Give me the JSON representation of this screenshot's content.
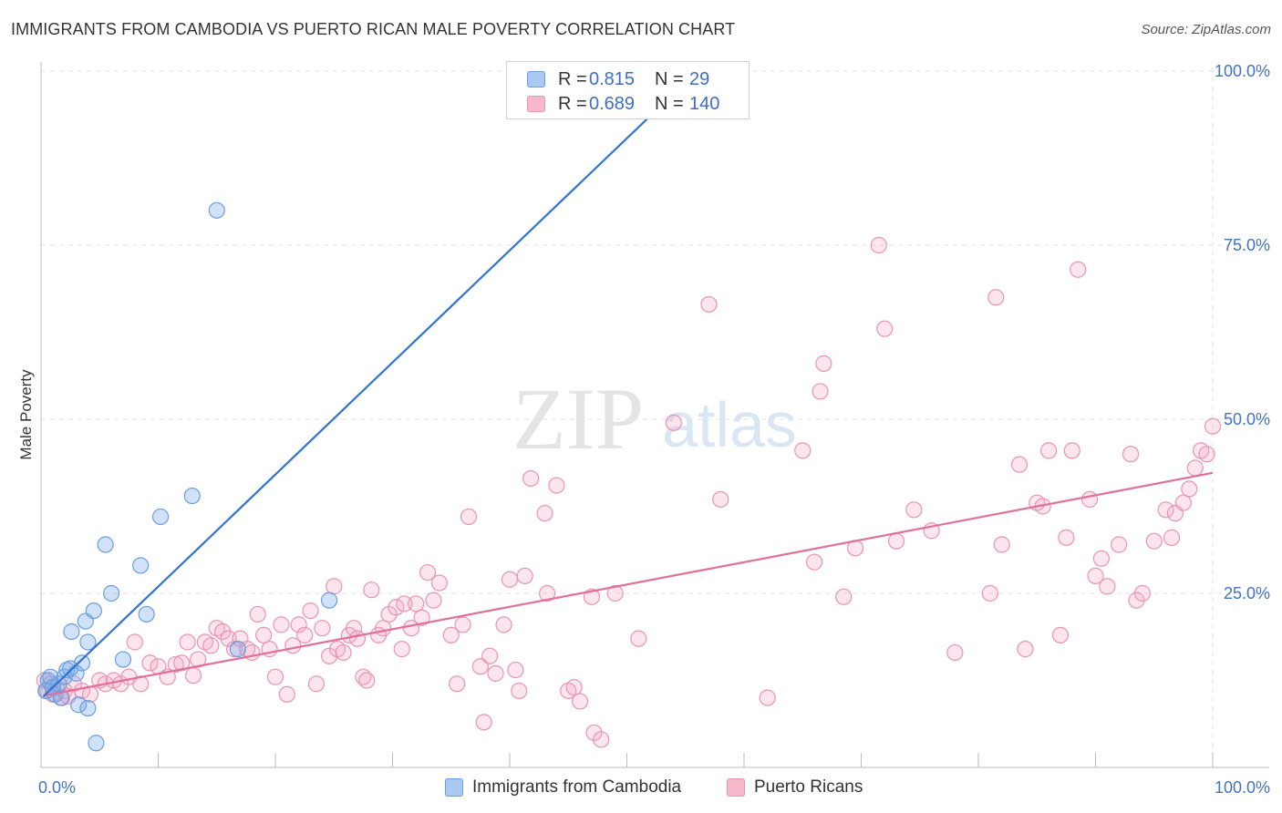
{
  "header": {
    "title": "IMMIGRANTS FROM CAMBODIA VS PUERTO RICAN MALE POVERTY CORRELATION CHART",
    "source": "Source: ZipAtlas.com"
  },
  "watermark": {
    "zip": "ZIP",
    "atlas": "atlas"
  },
  "legend": {
    "rows": [
      {
        "r_label": "R =",
        "r_value": "0.815",
        "n_label": "N =",
        "n_value": "29",
        "color": "#aac8f0"
      },
      {
        "r_label": "R =",
        "r_value": "0.689",
        "n_label": "N =",
        "n_value": "140",
        "color": "#f6b8cb"
      }
    ]
  },
  "bottom_legend": [
    {
      "label": "Immigrants from Cambodia",
      "color": "#aac8f0",
      "border": "#6a9ee0"
    },
    {
      "label": "Puerto Ricans",
      "color": "#f6b8cb",
      "border": "#e994b0"
    }
  ],
  "colors": {
    "cambodia_fill": "rgba(120,170,235,0.35)",
    "cambodia_stroke": "#6a9ee0",
    "cambodia_line": "#2f74d0",
    "puerto_fill": "rgba(246,170,195,0.30)",
    "puerto_stroke": "#e994b0",
    "puerto_line": "#e0709a",
    "tick_label": "#4472c4"
  },
  "chart_data": {
    "type": "scatter",
    "title": "IMMIGRANTS FROM CAMBODIA VS PUERTO RICAN MALE POVERTY CORRELATION CHART",
    "xlabel": "",
    "ylabel": "Male Poverty",
    "xlim": [
      0,
      100
    ],
    "ylim": [
      0,
      100
    ],
    "x_tick_labels": [
      {
        "value": 0,
        "label": "0.0%"
      },
      {
        "value": 100,
        "label": "100.0%"
      }
    ],
    "y_tick_labels": [
      {
        "value": 25,
        "label": "25.0%"
      },
      {
        "value": 50,
        "label": "50.0%"
      },
      {
        "value": 75,
        "label": "75.0%"
      },
      {
        "value": 100,
        "label": "100.0%"
      }
    ],
    "grid": true,
    "series": [
      {
        "name": "Immigrants from Cambodia",
        "trend": {
          "x": [
            0.2,
            56.0
          ],
          "y": [
            10.2,
            100.0
          ]
        },
        "points": [
          [
            0.4,
            11.0
          ],
          [
            0.6,
            12.5
          ],
          [
            0.8,
            13.0
          ],
          [
            1.0,
            11.5
          ],
          [
            1.2,
            10.5
          ],
          [
            1.5,
            12.0
          ],
          [
            1.7,
            10.0
          ],
          [
            2.0,
            13.0
          ],
          [
            2.2,
            14.0
          ],
          [
            2.5,
            14.2
          ],
          [
            2.6,
            19.5
          ],
          [
            3.0,
            13.5
          ],
          [
            3.2,
            9.0
          ],
          [
            3.5,
            15.0
          ],
          [
            3.8,
            21.0
          ],
          [
            4.0,
            18.0
          ],
          [
            4.0,
            8.5
          ],
          [
            4.5,
            22.5
          ],
          [
            4.7,
            3.5
          ],
          [
            5.5,
            32.0
          ],
          [
            6.0,
            25.0
          ],
          [
            7.0,
            15.5
          ],
          [
            8.5,
            29.0
          ],
          [
            9.0,
            22.0
          ],
          [
            10.2,
            36.0
          ],
          [
            12.9,
            39.0
          ],
          [
            15.0,
            80.0
          ],
          [
            16.8,
            17.0
          ],
          [
            24.6,
            24.0
          ]
        ]
      },
      {
        "name": "Puerto Ricans",
        "trend": {
          "x": [
            0.2,
            100.0
          ],
          "y": [
            10.3,
            42.3
          ]
        },
        "points": [
          [
            0.3,
            12.5
          ],
          [
            0.5,
            11.0
          ],
          [
            0.8,
            12.0
          ],
          [
            1.0,
            10.5
          ],
          [
            1.3,
            11.5
          ],
          [
            1.8,
            10.0
          ],
          [
            2.0,
            11.0
          ],
          [
            2.3,
            10.2
          ],
          [
            2.8,
            12.0
          ],
          [
            3.5,
            11.0
          ],
          [
            4.2,
            10.5
          ],
          [
            5.0,
            12.5
          ],
          [
            5.5,
            12.0
          ],
          [
            6.2,
            12.5
          ],
          [
            6.8,
            12.0
          ],
          [
            7.5,
            13.0
          ],
          [
            8.0,
            18.0
          ],
          [
            8.5,
            12.0
          ],
          [
            9.3,
            15.0
          ],
          [
            10.0,
            14.5
          ],
          [
            10.8,
            13.0
          ],
          [
            11.5,
            14.8
          ],
          [
            12.0,
            15.0
          ],
          [
            12.5,
            18.0
          ],
          [
            13.0,
            13.2
          ],
          [
            13.4,
            15.5
          ],
          [
            14.0,
            18.0
          ],
          [
            14.5,
            17.5
          ],
          [
            15.0,
            20.0
          ],
          [
            15.5,
            19.5
          ],
          [
            16.0,
            18.5
          ],
          [
            16.5,
            17.0
          ],
          [
            17.0,
            18.5
          ],
          [
            17.6,
            17.0
          ],
          [
            18.0,
            16.5
          ],
          [
            18.5,
            22.0
          ],
          [
            19.0,
            19.0
          ],
          [
            19.5,
            17.0
          ],
          [
            20.0,
            13.0
          ],
          [
            20.5,
            20.5
          ],
          [
            21.0,
            10.5
          ],
          [
            21.5,
            17.5
          ],
          [
            22.0,
            20.5
          ],
          [
            22.5,
            19.0
          ],
          [
            23.0,
            22.5
          ],
          [
            23.5,
            12.0
          ],
          [
            24.0,
            20.0
          ],
          [
            24.6,
            16.0
          ],
          [
            25.0,
            26.0
          ],
          [
            25.3,
            17.0
          ],
          [
            25.8,
            16.5
          ],
          [
            26.3,
            19.0
          ],
          [
            26.7,
            20.0
          ],
          [
            27.0,
            18.5
          ],
          [
            27.5,
            13.0
          ],
          [
            27.8,
            12.5
          ],
          [
            28.2,
            25.5
          ],
          [
            28.8,
            19.0
          ],
          [
            29.2,
            20.0
          ],
          [
            29.7,
            22.0
          ],
          [
            30.3,
            23.0
          ],
          [
            30.8,
            17.0
          ],
          [
            31.0,
            23.5
          ],
          [
            31.6,
            20.0
          ],
          [
            32.0,
            23.5
          ],
          [
            32.5,
            21.5
          ],
          [
            33.0,
            28.0
          ],
          [
            33.5,
            24.0
          ],
          [
            34.0,
            26.5
          ],
          [
            35.0,
            19.0
          ],
          [
            35.5,
            12.0
          ],
          [
            36.0,
            20.5
          ],
          [
            36.5,
            36.0
          ],
          [
            37.5,
            14.5
          ],
          [
            37.8,
            6.5
          ],
          [
            38.3,
            16.0
          ],
          [
            38.8,
            13.5
          ],
          [
            39.5,
            20.5
          ],
          [
            40.0,
            27.0
          ],
          [
            40.5,
            14.0
          ],
          [
            40.8,
            11.0
          ],
          [
            41.3,
            27.5
          ],
          [
            41.8,
            41.5
          ],
          [
            43.0,
            36.5
          ],
          [
            43.2,
            25.0
          ],
          [
            44.0,
            40.5
          ],
          [
            45.0,
            11.0
          ],
          [
            45.5,
            11.5
          ],
          [
            46.0,
            9.5
          ],
          [
            47.0,
            24.5
          ],
          [
            47.2,
            5.0
          ],
          [
            47.8,
            4.0
          ],
          [
            49.0,
            25.0
          ],
          [
            51.0,
            18.5
          ],
          [
            54.0,
            49.5
          ],
          [
            57.0,
            66.5
          ],
          [
            58.0,
            38.5
          ],
          [
            62.0,
            10.0
          ],
          [
            65.0,
            45.5
          ],
          [
            66.0,
            29.5
          ],
          [
            66.5,
            54.0
          ],
          [
            66.8,
            58.0
          ],
          [
            68.5,
            24.5
          ],
          [
            69.5,
            31.5
          ],
          [
            71.5,
            75.0
          ],
          [
            72.0,
            63.0
          ],
          [
            73.0,
            32.5
          ],
          [
            74.5,
            37.0
          ],
          [
            76.0,
            34.0
          ],
          [
            78.0,
            16.5
          ],
          [
            81.0,
            25.0
          ],
          [
            81.5,
            67.5
          ],
          [
            82.0,
            32.0
          ],
          [
            83.5,
            43.5
          ],
          [
            84.0,
            17.0
          ],
          [
            85.0,
            38.0
          ],
          [
            85.5,
            37.5
          ],
          [
            86.0,
            45.5
          ],
          [
            87.0,
            19.0
          ],
          [
            87.5,
            33.0
          ],
          [
            88.0,
            45.5
          ],
          [
            88.5,
            71.5
          ],
          [
            89.5,
            38.5
          ],
          [
            90.0,
            27.5
          ],
          [
            90.5,
            30.0
          ],
          [
            91.0,
            26.0
          ],
          [
            92.0,
            32.0
          ],
          [
            93.0,
            45.0
          ],
          [
            93.5,
            24.0
          ],
          [
            94.0,
            25.0
          ],
          [
            95.0,
            32.5
          ],
          [
            96.0,
            37.0
          ],
          [
            96.5,
            33.0
          ],
          [
            96.8,
            36.5
          ],
          [
            97.5,
            38.0
          ],
          [
            98.0,
            40.0
          ],
          [
            98.5,
            43.0
          ],
          [
            99.0,
            45.5
          ],
          [
            99.5,
            45.0
          ],
          [
            100.0,
            49.0
          ]
        ]
      }
    ]
  }
}
